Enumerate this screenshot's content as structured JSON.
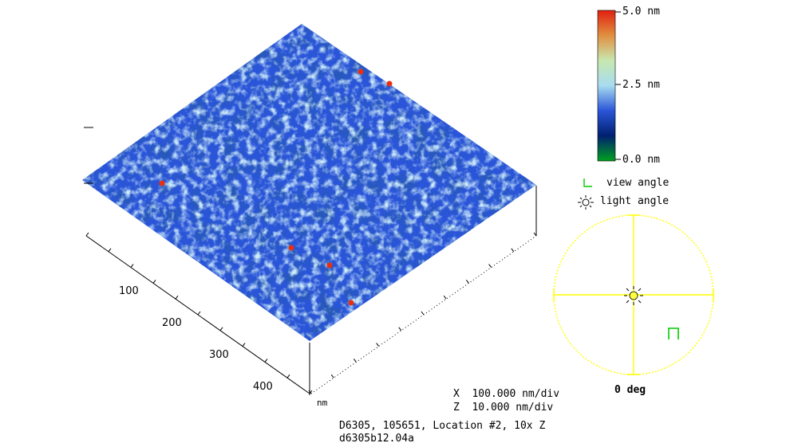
{
  "colorbar": {
    "max_label": "5.0 nm",
    "mid_label": "2.5 nm",
    "min_label": "0.0 nm",
    "stops": [
      "#00a020",
      "#002070",
      "#2a55d8",
      "#a8dcf0",
      "#c8e8b0",
      "#e09040",
      "#e02010"
    ]
  },
  "legend": {
    "view_angle_label": "view angle",
    "light_angle_label": "light angle"
  },
  "compass": {
    "angle_label": "0 deg",
    "color": "#ffff00"
  },
  "axis": {
    "ticks": [
      "100",
      "200",
      "300",
      "400"
    ],
    "unit": "nm"
  },
  "scale": {
    "x_line": "X  100.000 nm/div",
    "z_line": "Z  10.000 nm/div"
  },
  "caption": {
    "line1": "D6305, 105651, Location #2, 10x Z",
    "line2": "d6305b12.04a"
  },
  "surface": {
    "base_color": "#2a55d8",
    "peak_color": "#e83010"
  }
}
